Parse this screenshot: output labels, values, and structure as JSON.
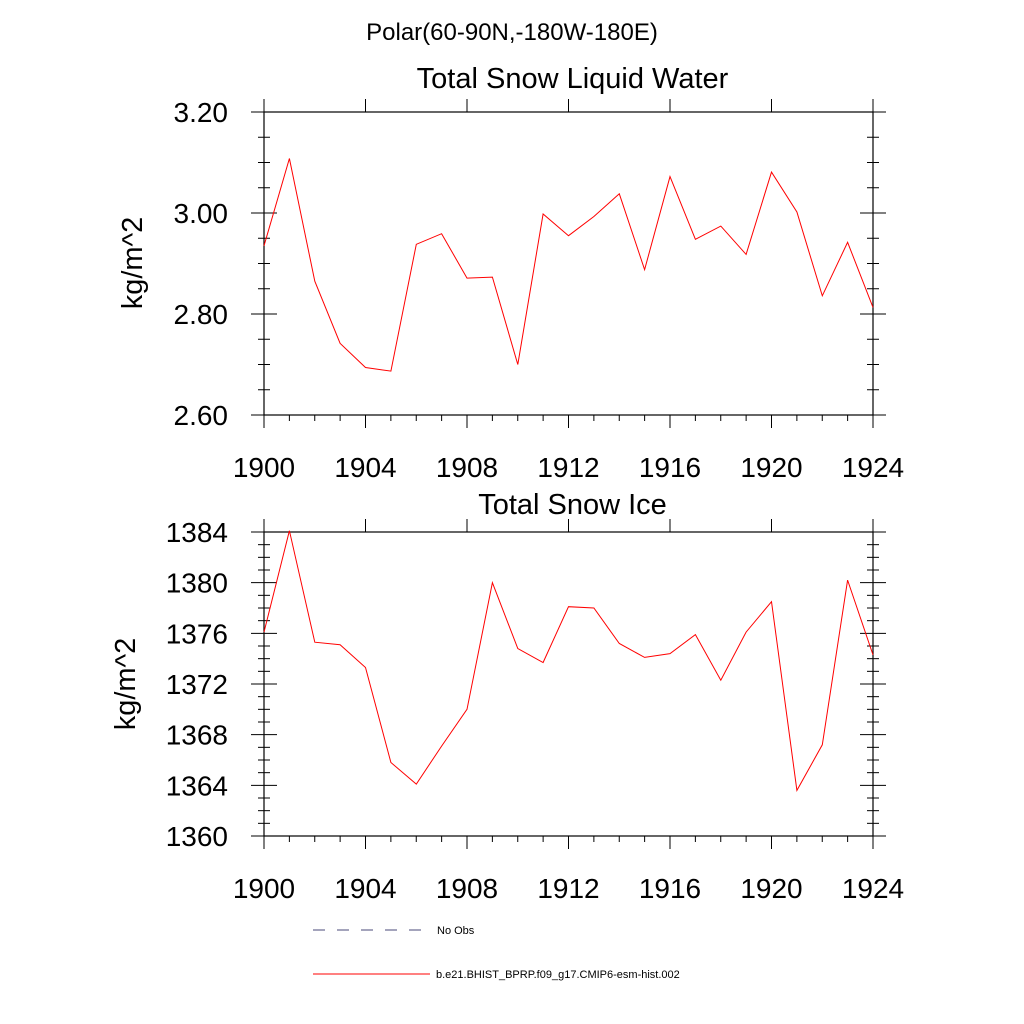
{
  "figure": {
    "suptitle": "Polar(60-90N,-180W-180E)"
  },
  "chart_data": [
    {
      "type": "line",
      "title": "Total Snow Liquid Water",
      "xlabel": "",
      "ylabel": "kg/m^2",
      "xlim": [
        1900,
        1924
      ],
      "ylim": [
        2.6,
        3.2
      ],
      "x_ticks": [
        1900,
        1904,
        1908,
        1912,
        1916,
        1920,
        1924
      ],
      "x_tick_labels": [
        "1900",
        "1904",
        "1908",
        "1912",
        "1916",
        "1920",
        "1924"
      ],
      "y_ticks": [
        2.6,
        2.8,
        3.0,
        3.2
      ],
      "y_tick_labels": [
        "2.60",
        "2.80",
        "3.00",
        "3.20"
      ],
      "y_minor_step": 0.05,
      "x": [
        1900,
        1901,
        1902,
        1903,
        1904,
        1905,
        1906,
        1907,
        1908,
        1909,
        1910,
        1911,
        1912,
        1913,
        1914,
        1915,
        1916,
        1917,
        1918,
        1919,
        1920,
        1921,
        1922,
        1923,
        1924
      ],
      "series": [
        {
          "name": "b.e21.BHIST_BPRP.f09_g17.CMIP6-esm-hist.002",
          "color": "#ff0000",
          "values": [
            2.935,
            3.108,
            2.865,
            2.742,
            2.694,
            2.687,
            2.938,
            2.959,
            2.871,
            2.873,
            2.7,
            2.998,
            2.955,
            2.993,
            3.038,
            2.888,
            3.072,
            2.948,
            2.974,
            2.918,
            3.081,
            3.002,
            2.836,
            2.942,
            2.813
          ]
        }
      ]
    },
    {
      "type": "line",
      "title": "Total Snow Ice",
      "xlabel": "",
      "ylabel": "kg/m^2",
      "xlim": [
        1900,
        1924
      ],
      "ylim": [
        1360,
        1384
      ],
      "x_ticks": [
        1900,
        1904,
        1908,
        1912,
        1916,
        1920,
        1924
      ],
      "x_tick_labels": [
        "1900",
        "1904",
        "1908",
        "1912",
        "1916",
        "1920",
        "1924"
      ],
      "y_ticks": [
        1360,
        1364,
        1368,
        1372,
        1376,
        1380,
        1384
      ],
      "y_tick_labels": [
        "1360",
        "1364",
        "1368",
        "1372",
        "1376",
        "1380",
        "1384"
      ],
      "y_minor_step": 1,
      "x": [
        1900,
        1901,
        1902,
        1903,
        1904,
        1905,
        1906,
        1907,
        1908,
        1909,
        1910,
        1911,
        1912,
        1913,
        1914,
        1915,
        1916,
        1917,
        1918,
        1919,
        1920,
        1921,
        1922,
        1923,
        1924
      ],
      "series": [
        {
          "name": "b.e21.BHIST_BPRP.f09_g17.CMIP6-esm-hist.002",
          "color": "#ff0000",
          "values": [
            1376.1,
            1384.1,
            1375.3,
            1375.1,
            1373.3,
            1365.8,
            1364.1,
            1367.1,
            1370.0,
            1380.0,
            1374.8,
            1373.7,
            1378.1,
            1378.0,
            1375.2,
            1374.1,
            1374.4,
            1375.9,
            1372.3,
            1376.1,
            1378.5,
            1363.6,
            1367.2,
            1380.2,
            1374.3
          ]
        }
      ]
    }
  ],
  "legend": {
    "placement": "bottom-center",
    "items": [
      {
        "label": "No Obs",
        "style": "dashed",
        "color": "#4a4a7a"
      },
      {
        "label": "b.e21.BHIST_BPRP.f09_g17.CMIP6-esm-hist.002",
        "style": "solid",
        "color": "#ff0000"
      }
    ]
  }
}
